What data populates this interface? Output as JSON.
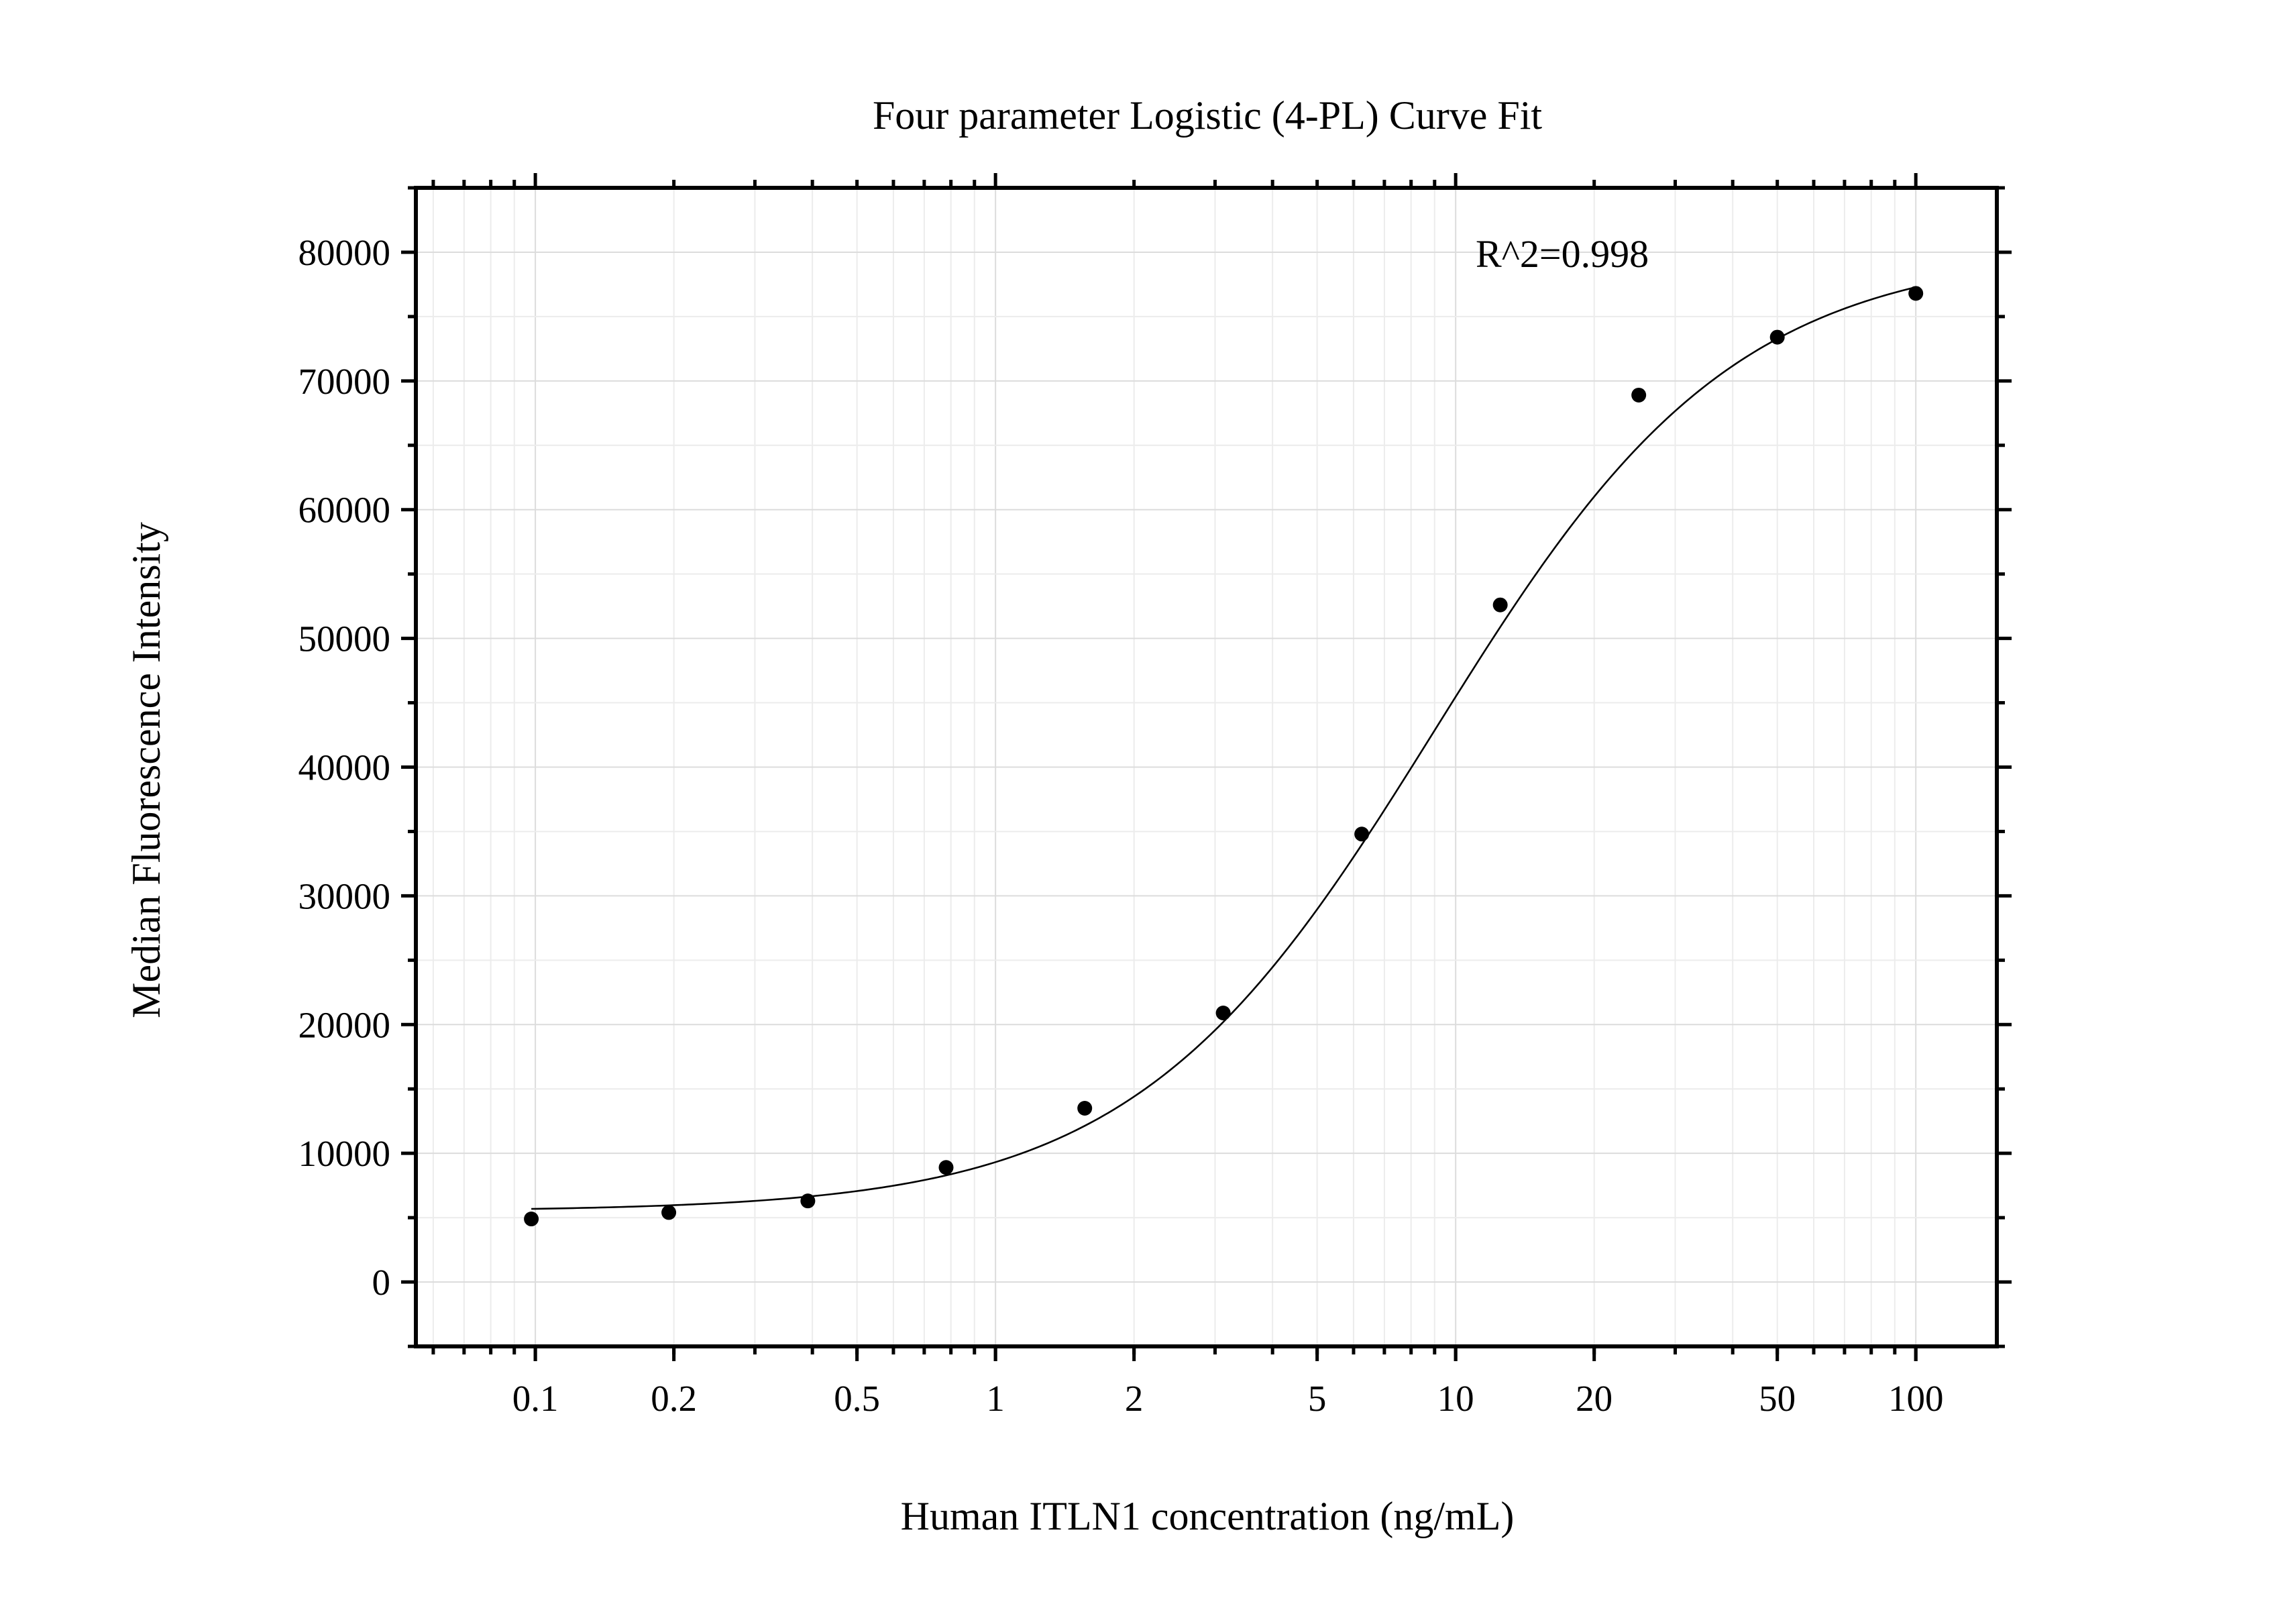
{
  "chart_data": {
    "type": "scatter",
    "title": "Four parameter Logistic (4-PL) Curve Fit",
    "xlabel": "Human ITLN1 concentration (ng/mL)",
    "ylabel": "Median Fluorescence Intensity",
    "annotation": "R^2=0.998",
    "x_scale": "log",
    "xlim": [
      0.055,
      150
    ],
    "ylim": [
      -5000,
      85000
    ],
    "grid": true,
    "x_ticks": [
      0.1,
      0.2,
      0.5,
      1,
      2,
      5,
      10,
      20,
      50,
      100
    ],
    "x_tick_labels": [
      "0.1",
      "0.2",
      "0.5",
      "1",
      "2",
      "5",
      "10",
      "20",
      "50",
      "100"
    ],
    "y_ticks": [
      0,
      10000,
      20000,
      30000,
      40000,
      50000,
      60000,
      70000,
      80000
    ],
    "y_tick_labels": [
      "0",
      "10000",
      "20000",
      "30000",
      "40000",
      "50000",
      "60000",
      "70000",
      "80000"
    ],
    "series": [
      {
        "type": "scatter",
        "x": [
          0.098,
          0.195,
          0.391,
          0.781,
          1.563,
          3.125,
          6.25,
          12.5,
          25,
          50,
          100
        ],
        "y": [
          4900,
          5400,
          6300,
          8900,
          13500,
          20900,
          34800,
          52600,
          68900,
          73400,
          76800
        ]
      },
      {
        "type": "line",
        "fit": "4PL",
        "x_range": [
          0.098,
          100
        ],
        "params": {
          "A": 5500,
          "B": 1.33,
          "C": 9.0,
          "D": 80200
        }
      }
    ]
  }
}
